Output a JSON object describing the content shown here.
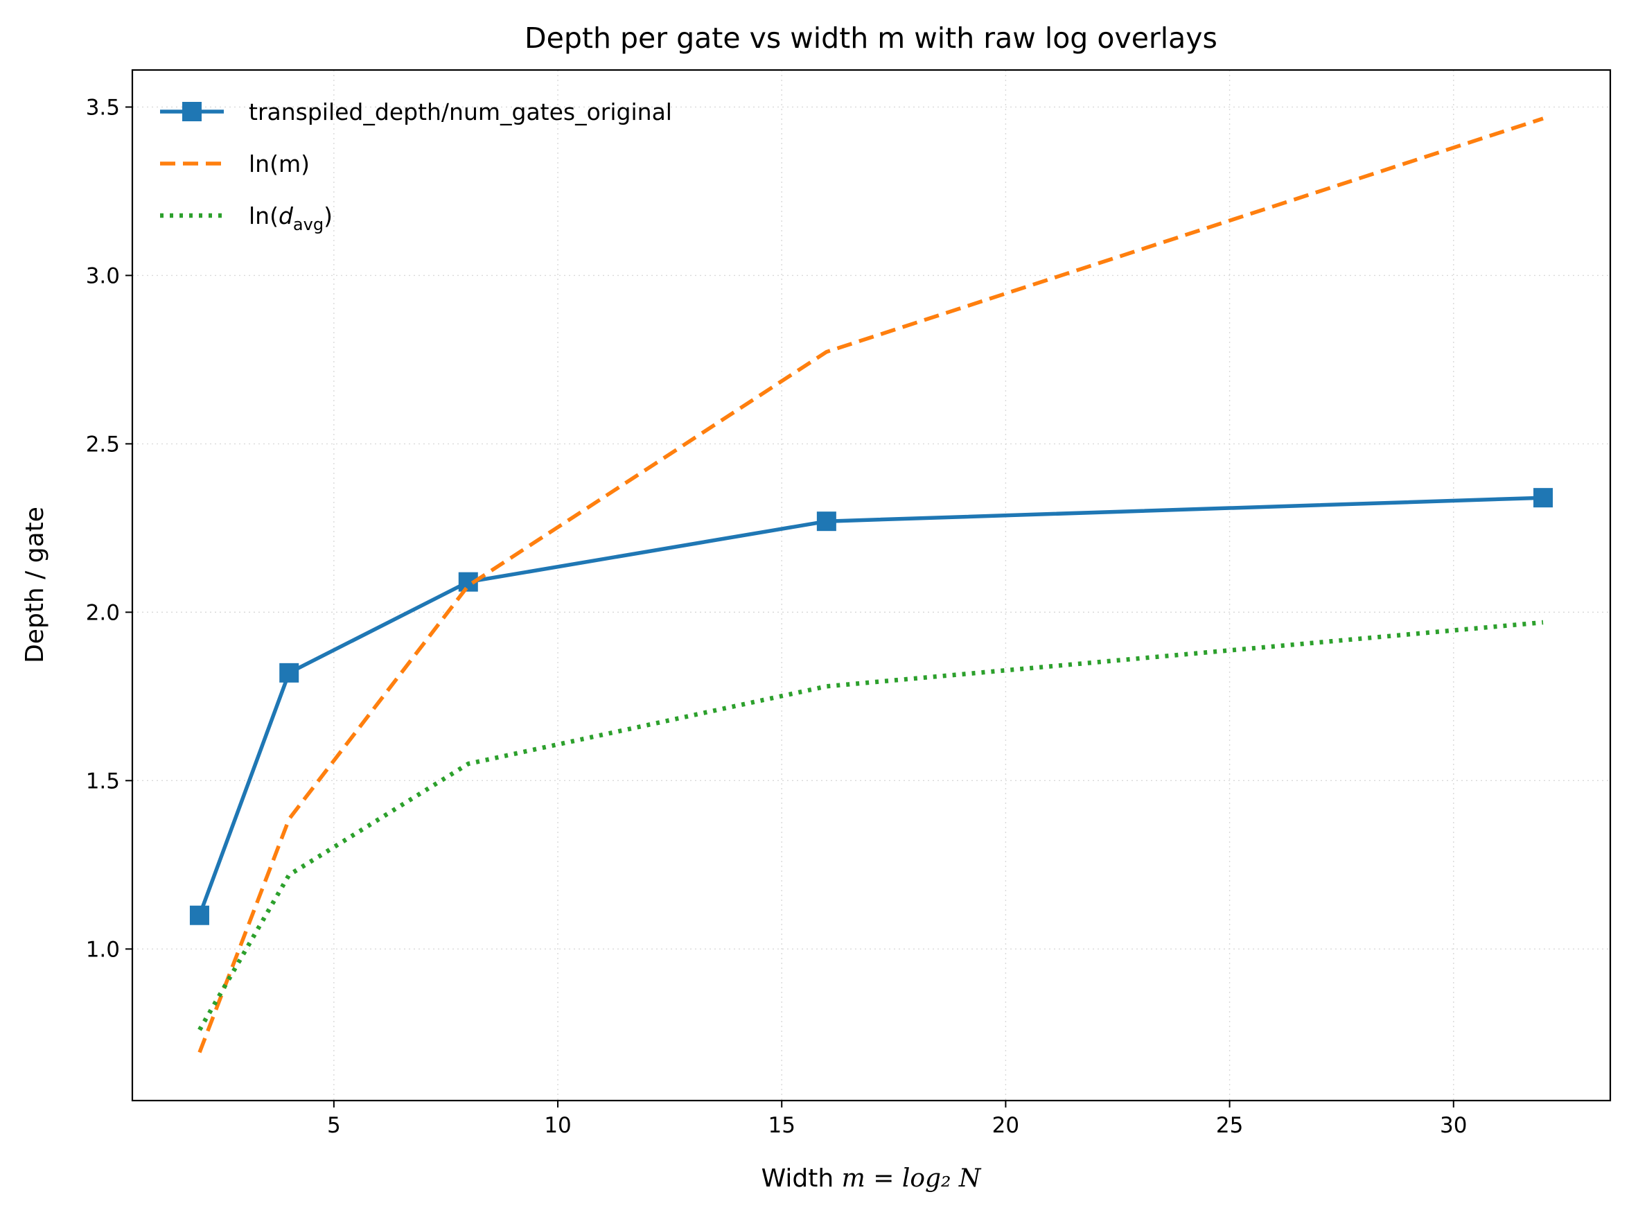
{
  "chart_data": {
    "type": "line",
    "title": "Depth per gate vs width m with raw log overlays",
    "xlabel": {
      "prefix": "Width ",
      "math": "m = log₂ N"
    },
    "ylabel": "Depth / gate",
    "xlim": [
      0.5,
      33.5
    ],
    "ylim": [
      0.55,
      3.61
    ],
    "xticks": [
      5,
      10,
      15,
      20,
      25,
      30
    ],
    "xtick_labels": [
      "5",
      "10",
      "15",
      "20",
      "25",
      "30"
    ],
    "yticks": [
      1.0,
      1.5,
      2.0,
      2.5,
      3.0,
      3.5
    ],
    "ytick_labels": [
      "1.0",
      "1.5",
      "2.0",
      "2.5",
      "3.0",
      "3.5"
    ],
    "grid": true,
    "legend_position": "top-left",
    "x": [
      2,
      4,
      8,
      16,
      32
    ],
    "series": [
      {
        "name": "transpiled_depth/num_gates_original",
        "values": [
          1.1,
          1.82,
          2.09,
          2.27,
          2.34
        ],
        "color": "#1f77b4",
        "style": "solid",
        "marker": "square"
      },
      {
        "name": "ln(m)",
        "values": [
          0.693,
          1.386,
          2.079,
          2.773,
          3.466
        ],
        "color": "#ff7f0e",
        "style": "dashed",
        "marker": "none"
      },
      {
        "name": "ln(d_avg)",
        "name_parts": {
          "prefix": "ln(",
          "var": "d",
          "sub": "avg",
          "suffix": ")"
        },
        "values": [
          0.76,
          1.22,
          1.55,
          1.78,
          1.97
        ],
        "color": "#2ca02c",
        "style": "dotted",
        "marker": "none"
      }
    ]
  }
}
